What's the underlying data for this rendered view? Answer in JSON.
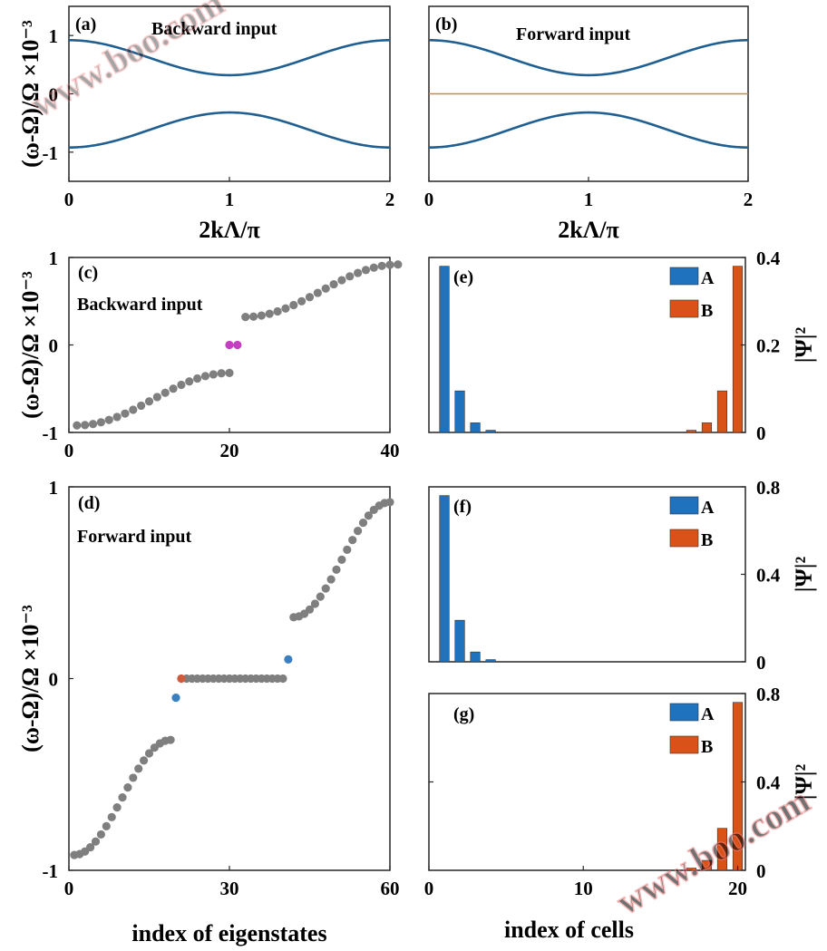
{
  "colors": {
    "band": "#1f5f91",
    "flat": "#d9813a",
    "state": "#7f7f7f",
    "edge_pair": "#c340c3",
    "blue_state": "#3a7fbf",
    "red_state": "#d05a3c",
    "A": "#1f72bd",
    "B": "#d95319"
  },
  "watermark": "www.boo.com",
  "chart_data": [
    {
      "id": "a",
      "type": "line",
      "panel_label": "(a)",
      "annotation": "Backward input",
      "xlabel": "2kΛ/π",
      "ylabel": "(ω-Ω)/Ω ×10⁻³",
      "xlim": [
        0,
        2
      ],
      "ylim": [
        -1.5,
        1.5
      ],
      "xticks": [
        "0",
        "1",
        "2"
      ],
      "yticks": [
        "-1",
        "0",
        "1"
      ],
      "series": [
        {
          "band": "upper",
          "x": [
            0,
            0.25,
            0.5,
            0.75,
            1,
            1.25,
            1.5,
            1.75,
            2
          ],
          "y": [
            0.92,
            0.86,
            0.68,
            0.45,
            0.32,
            0.45,
            0.68,
            0.86,
            0.92
          ]
        },
        {
          "band": "lower",
          "x": [
            0,
            0.25,
            0.5,
            0.75,
            1,
            1.25,
            1.5,
            1.75,
            2
          ],
          "y": [
            -0.92,
            -0.86,
            -0.68,
            -0.45,
            -0.32,
            -0.45,
            -0.68,
            -0.86,
            -0.92
          ]
        }
      ]
    },
    {
      "id": "b",
      "type": "line",
      "panel_label": "(b)",
      "annotation": "Forward input",
      "xlabel": "2kΛ/π",
      "xlim": [
        0,
        2
      ],
      "ylim": [
        -1.5,
        1.5
      ],
      "xticks": [
        "0",
        "1",
        "2"
      ],
      "series": [
        {
          "band": "upper",
          "x": [
            0,
            0.25,
            0.5,
            0.75,
            1,
            1.25,
            1.5,
            1.75,
            2
          ],
          "y": [
            0.92,
            0.86,
            0.68,
            0.45,
            0.32,
            0.45,
            0.68,
            0.86,
            0.92
          ]
        },
        {
          "band": "lower",
          "x": [
            0,
            0.25,
            0.5,
            0.75,
            1,
            1.25,
            1.5,
            1.75,
            2
          ],
          "y": [
            -0.92,
            -0.86,
            -0.68,
            -0.45,
            -0.32,
            -0.45,
            -0.68,
            -0.86,
            -0.92
          ]
        },
        {
          "band": "flat",
          "x": [
            0,
            2
          ],
          "y": [
            0,
            0
          ]
        }
      ]
    },
    {
      "id": "c",
      "type": "scatter",
      "panel_label": "(c)",
      "annotation": "Backward input",
      "ylabel": "(ω-Ω)/Ω ×10⁻³",
      "xlim": [
        0,
        40
      ],
      "ylim": [
        -1,
        1
      ],
      "xticks": [
        "0",
        "20",
        "40"
      ],
      "yticks": [
        "-1",
        "0",
        "1"
      ],
      "lower_band": {
        "n_start": 1,
        "n_end": 20,
        "y_start": -0.92,
        "y_end": -0.32
      },
      "upper_band": {
        "n_start": 22,
        "n_end": 41,
        "y_start": 0.32,
        "y_end": 0.92
      },
      "edge_states": {
        "x": [
          20,
          21
        ],
        "y": [
          0,
          0
        ]
      }
    },
    {
      "id": "d",
      "type": "scatter",
      "panel_label": "(d)",
      "annotation": "Forward input",
      "xlabel": "index of eigenstates",
      "ylabel": "(ω-Ω)/Ω ×10⁻³",
      "xlim": [
        0,
        60
      ],
      "ylim": [
        -1,
        1
      ],
      "xticks": [
        "0",
        "30",
        "60"
      ],
      "yticks": [
        "-1",
        "0",
        "1"
      ],
      "lower_band": {
        "n_start": 1,
        "n_end": 19,
        "y_start": -0.92,
        "y_end": -0.32
      },
      "upper_band": {
        "n_start": 42,
        "n_end": 60,
        "y_start": 0.32,
        "y_end": 0.92
      },
      "flat_band": {
        "n_start": 22,
        "n_end": 40,
        "y": 0
      },
      "blue_states": {
        "x": [
          20,
          41
        ],
        "y": [
          -0.1,
          0.1
        ]
      },
      "red_state": {
        "x": 21,
        "y": 0
      }
    },
    {
      "id": "e",
      "type": "bar",
      "panel_label": "(e)",
      "ylabel": "|Ψ|²",
      "xlim": [
        0,
        20.5
      ],
      "ylim": [
        0,
        0.4
      ],
      "yticks": [
        "0",
        "0.2",
        "0.4"
      ],
      "legend": [
        "A",
        "B"
      ],
      "A": {
        "x": [
          1,
          2,
          3,
          4
        ],
        "values": [
          0.38,
          0.095,
          0.022,
          0.005
        ]
      },
      "B": {
        "x": [
          17,
          18,
          19,
          20
        ],
        "values": [
          0.005,
          0.022,
          0.095,
          0.38
        ]
      }
    },
    {
      "id": "f",
      "type": "bar",
      "panel_label": "(f)",
      "ylabel": "|Ψ|²",
      "xlim": [
        0,
        20.5
      ],
      "ylim": [
        0,
        0.8
      ],
      "yticks": [
        "0",
        "0.4",
        "0.8"
      ],
      "legend": [
        "A",
        "B"
      ],
      "A": {
        "x": [
          1,
          2,
          3,
          4
        ],
        "values": [
          0.76,
          0.19,
          0.045,
          0.01
        ]
      },
      "B": {
        "x": [],
        "values": []
      }
    },
    {
      "id": "g",
      "type": "bar",
      "panel_label": "(g)",
      "xlabel": "index of cells",
      "ylabel": "|Ψ|²",
      "xlim": [
        0,
        20.5
      ],
      "ylim": [
        0,
        0.8
      ],
      "xticks": [
        "0",
        "10",
        "20"
      ],
      "yticks": [
        "0",
        "0.4",
        "0.8"
      ],
      "legend": [
        "A",
        "B"
      ],
      "A": {
        "x": [],
        "values": []
      },
      "B": {
        "x": [
          17,
          18,
          19,
          20
        ],
        "values": [
          0.01,
          0.045,
          0.19,
          0.76
        ]
      }
    }
  ]
}
